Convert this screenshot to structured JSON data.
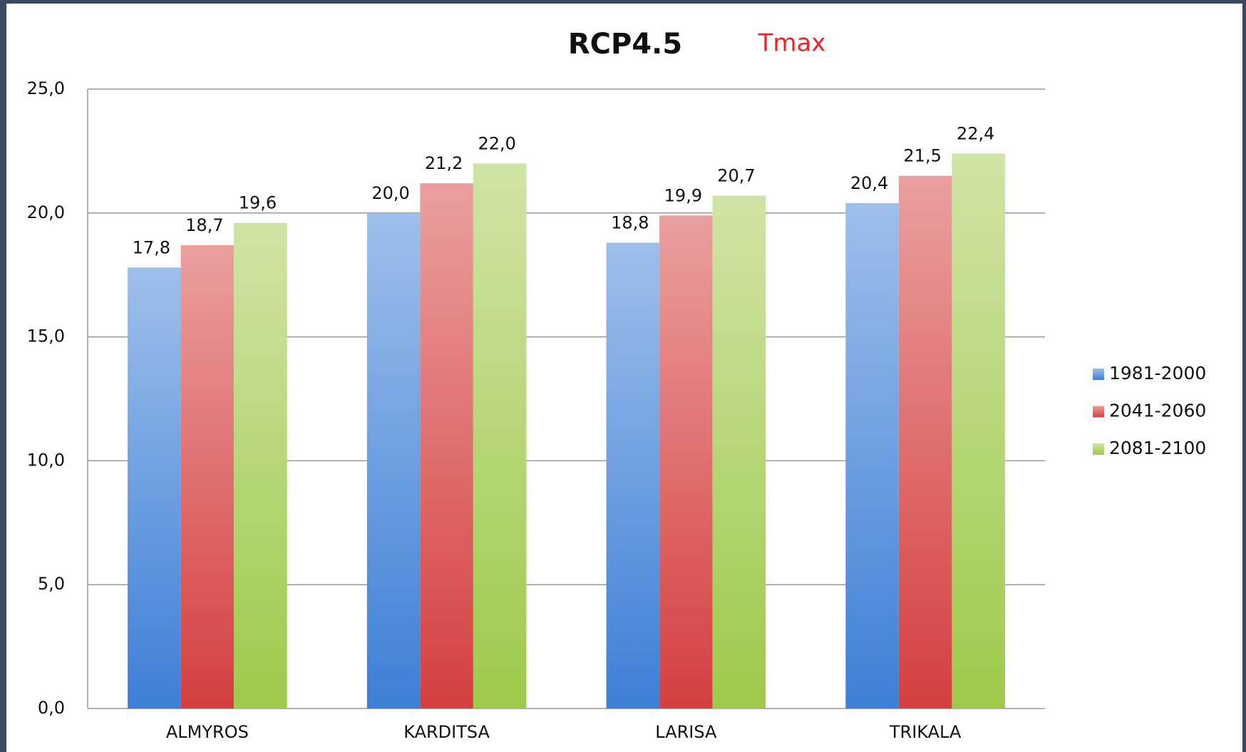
{
  "chart_data": {
    "type": "bar",
    "title": "RCP4.5",
    "subtitle": "Tmax",
    "categories": [
      "ALMYROS",
      "KARDITSA",
      "LARISA",
      "TRIKALA"
    ],
    "series": [
      {
        "name": "1981-2000",
        "color": "#3d7fd6",
        "values": [
          17.8,
          20.0,
          18.8,
          20.4
        ],
        "value_labels": [
          "17,8",
          "20,0",
          "18,8",
          "20,4"
        ]
      },
      {
        "name": "2041-2060",
        "color": "#d43f3f",
        "values": [
          18.7,
          21.2,
          19.9,
          21.5
        ],
        "value_labels": [
          "18,7",
          "21,2",
          "19,9",
          "21,5"
        ]
      },
      {
        "name": "2081-2100",
        "color": "#9ec94a",
        "values": [
          19.6,
          22.0,
          20.7,
          22.4
        ],
        "value_labels": [
          "19,6",
          "22,0",
          "20,7",
          "22,4"
        ]
      }
    ],
    "ylim": [
      0,
      25
    ],
    "yticks": [
      {
        "value": 0,
        "label": "0,0"
      },
      {
        "value": 5,
        "label": "5,0"
      },
      {
        "value": 10,
        "label": "10,0"
      },
      {
        "value": 15,
        "label": "15,0"
      },
      {
        "value": 20,
        "label": "20,0"
      },
      {
        "value": 25,
        "label": "25,0"
      }
    ],
    "grid": true,
    "legend": "right"
  }
}
